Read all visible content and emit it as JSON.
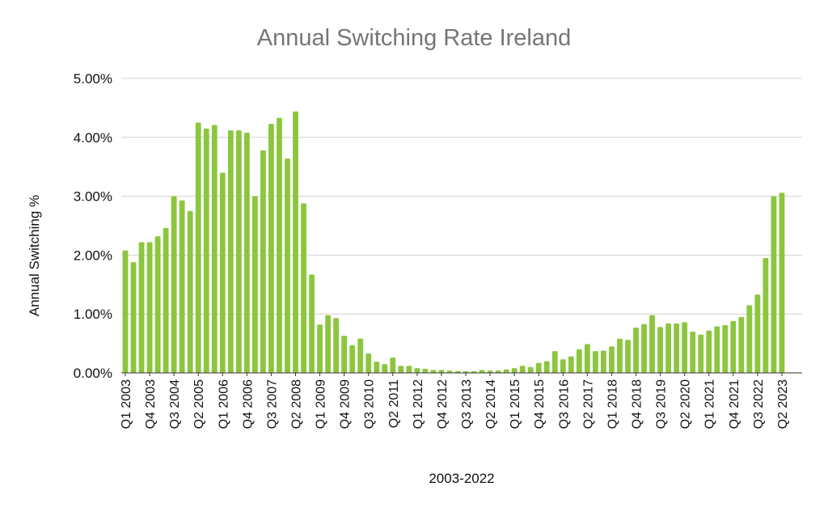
{
  "chart_data": {
    "type": "bar",
    "title": "Annual Switching Rate Ireland",
    "xlabel": "2003-2022",
    "ylabel": "Annual Switching %",
    "ylim": [
      0,
      5
    ],
    "y_ticks": [
      "0.00%",
      "1.00%",
      "2.00%",
      "3.00%",
      "4.00%",
      "5.00%"
    ],
    "grid": true,
    "bar_color": "#8cc63f",
    "x_tick_labels": [
      "Q1 2003",
      "Q4 2003",
      "Q3 2004",
      "Q2 2005",
      "Q1 2006",
      "Q4 2006",
      "Q3 2007",
      "Q2 2008",
      "Q1 2009",
      "Q4 2009",
      "Q3 2010",
      "Q2 2011",
      "Q1 2012",
      "Q4 2012",
      "Q3 2013",
      "Q2 2014",
      "Q1 2015",
      "Q4 2015",
      "Q3 2016",
      "Q2 2017",
      "Q1 2018",
      "Q4 2018",
      "Q3 2019",
      "Q2 2020",
      "Q1 2021",
      "Q4 2021",
      "Q3 2022",
      "Q2 2023"
    ],
    "values": [
      2.08,
      1.88,
      2.22,
      2.22,
      2.32,
      2.46,
      3.0,
      2.93,
      2.75,
      4.25,
      4.15,
      4.21,
      3.4,
      4.12,
      4.12,
      4.08,
      3.0,
      3.78,
      4.23,
      4.33,
      3.64,
      4.44,
      2.88,
      1.67,
      0.82,
      0.98,
      0.93,
      0.63,
      0.47,
      0.58,
      0.33,
      0.19,
      0.15,
      0.26,
      0.12,
      0.12,
      0.08,
      0.07,
      0.05,
      0.05,
      0.04,
      0.03,
      0.03,
      0.03,
      0.05,
      0.04,
      0.04,
      0.06,
      0.08,
      0.12,
      0.1,
      0.17,
      0.2,
      0.37,
      0.23,
      0.28,
      0.4,
      0.49,
      0.37,
      0.38,
      0.45,
      0.58,
      0.56,
      0.77,
      0.83,
      0.98,
      0.78,
      0.84,
      0.84,
      0.86,
      0.7,
      0.65,
      0.72,
      0.79,
      0.81,
      0.88,
      0.95,
      1.15,
      1.33,
      1.95,
      3.0,
      3.06
    ]
  }
}
